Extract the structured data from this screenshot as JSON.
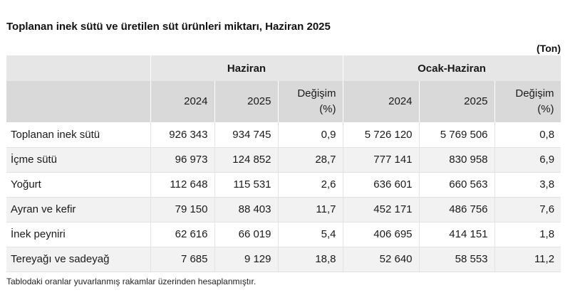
{
  "title": "Toplanan inek sütü ve üretilen süt ürünleri miktarı, Haziran 2025",
  "unit": "(Ton)",
  "header": {
    "group1": "Haziran",
    "group2": "Ocak-Haziran",
    "cols": [
      "2024",
      "2025",
      "Değişim",
      "(%)",
      "2024",
      "2025",
      "Değişim",
      "(%)"
    ]
  },
  "rows": [
    {
      "label": "Toplanan inek sütü",
      "values": [
        "926 343",
        "934 745",
        "0,9",
        "5 726 120",
        "5 769 506",
        "0,8"
      ]
    },
    {
      "label": "İçme sütü",
      "values": [
        "96 973",
        "124 852",
        "28,7",
        "777 141",
        "830 958",
        "6,9"
      ]
    },
    {
      "label": "Yoğurt",
      "values": [
        "112 648",
        "115 531",
        "2,6",
        "636 601",
        "660 563",
        "3,8"
      ]
    },
    {
      "label": "Ayran ve kefir",
      "values": [
        "79 150",
        "88 403",
        "11,7",
        "452 171",
        "486 756",
        "7,6"
      ]
    },
    {
      "label": "İnek peyniri",
      "values": [
        "62 616",
        "66 019",
        "5,4",
        "406 695",
        "414 151",
        "1,8"
      ]
    },
    {
      "label": "Tereyağı ve sadeyağ",
      "values": [
        "7 685",
        "9 129",
        "18,8",
        "52 640",
        "58 553",
        "11,2"
      ]
    }
  ],
  "note": "Tablodaki oranlar yuvarlanmış rakamlar üzerinden hesaplanmıştır."
}
